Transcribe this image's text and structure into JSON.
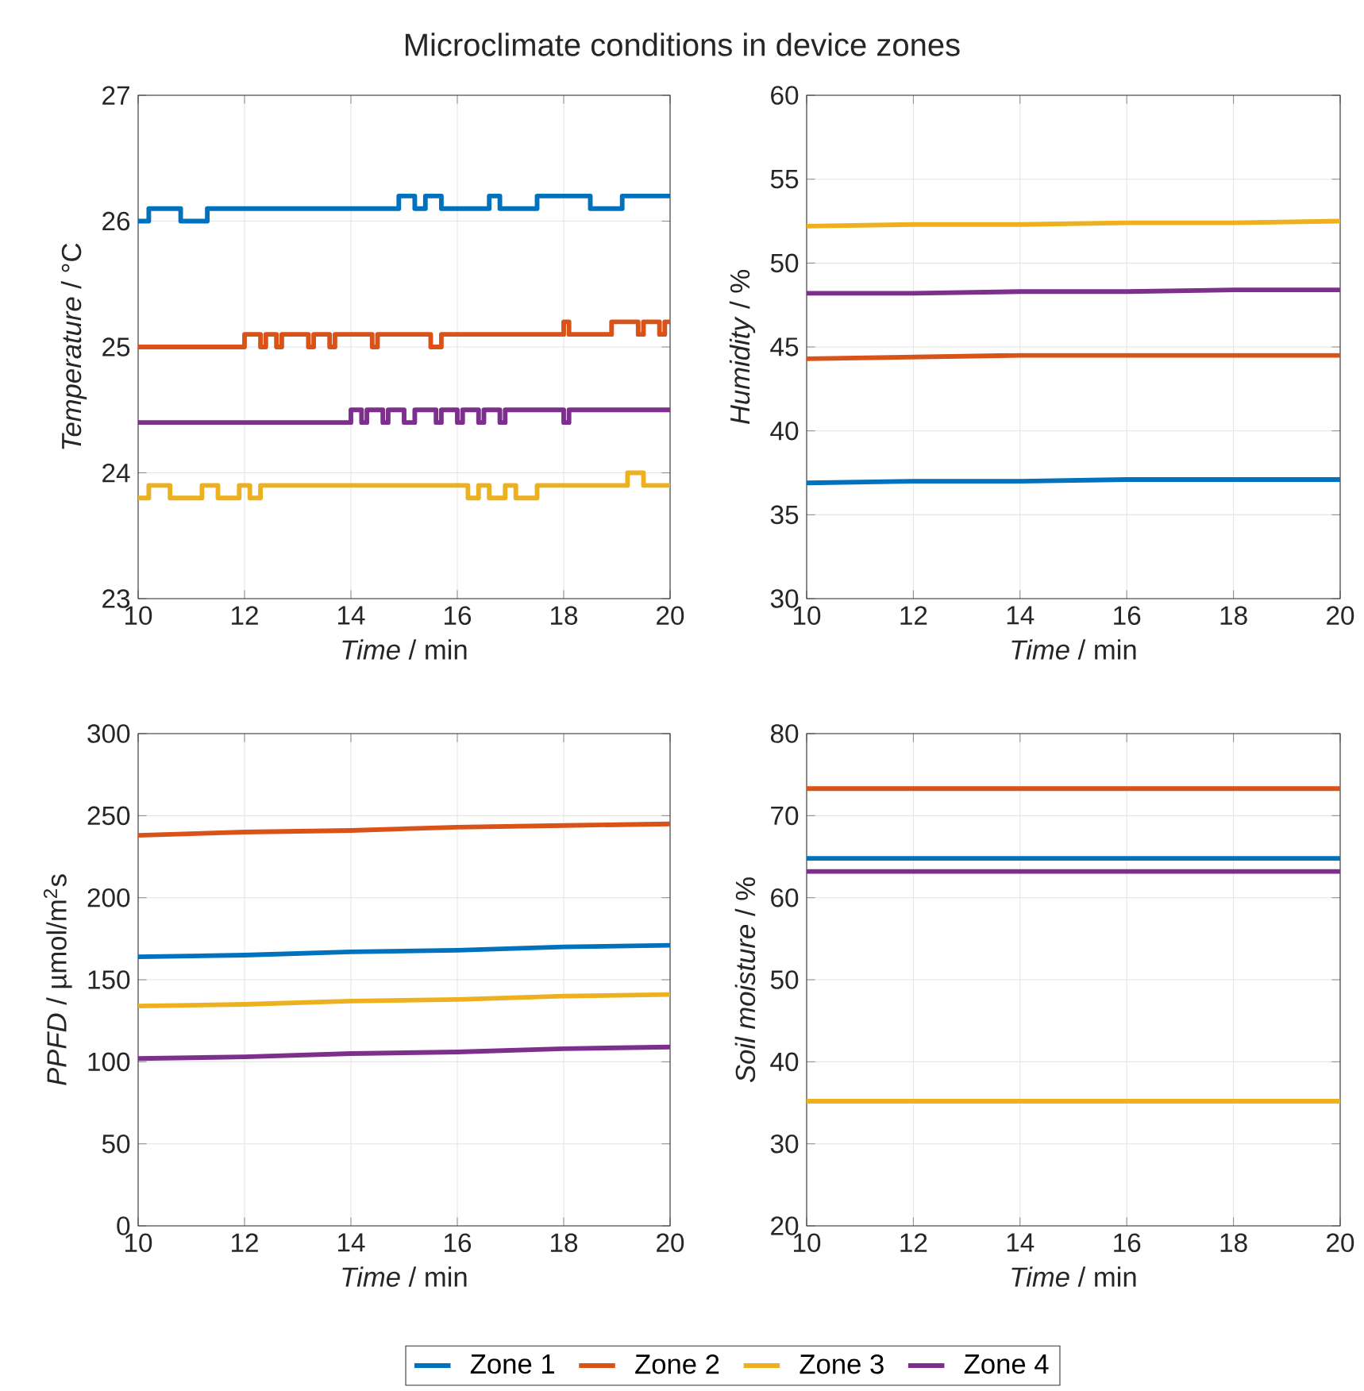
{
  "chart_data": [
    {
      "type": "step",
      "title": "Microclimate conditions in device zones",
      "xlabel": "*Time* / min",
      "ylabel": "*Temperature* / °C",
      "xlim": [
        10,
        20
      ],
      "ylim": [
        23,
        27
      ],
      "xticks": [
        10,
        12,
        14,
        16,
        18,
        20
      ],
      "yticks": [
        23,
        24,
        25,
        26,
        27
      ],
      "grid": true,
      "legend": "bottom",
      "series": [
        {
          "name": "Zone 1",
          "color": "#0072bd",
          "x": [
            10,
            10.2,
            10.8,
            11.3,
            14.9,
            15.2,
            15.4,
            15.7,
            16.6,
            16.8,
            17.5,
            18.5,
            19.1,
            20
          ],
          "values": [
            26.0,
            26.1,
            26.0,
            26.1,
            26.2,
            26.1,
            26.2,
            26.1,
            26.2,
            26.1,
            26.2,
            26.1,
            26.2,
            26.2
          ]
        },
        {
          "name": "Zone 2",
          "color": "#d95319",
          "x": [
            10,
            12.0,
            12.3,
            12.4,
            12.6,
            12.7,
            13.2,
            13.3,
            13.6,
            13.7,
            14.4,
            14.5,
            15.5,
            15.7,
            18.0,
            18.1,
            18.9,
            19.4,
            19.5,
            19.8,
            19.9,
            20
          ],
          "values": [
            25.0,
            25.1,
            25.0,
            25.1,
            25.0,
            25.1,
            25.0,
            25.1,
            25.0,
            25.1,
            25.0,
            25.1,
            25.0,
            25.1,
            25.2,
            25.1,
            25.2,
            25.1,
            25.2,
            25.1,
            25.2,
            25.2
          ]
        },
        {
          "name": "Zone 3",
          "color": "#edb120",
          "x": [
            10,
            10.2,
            10.6,
            11.2,
            11.5,
            11.9,
            12.1,
            12.3,
            12.4,
            16.2,
            16.4,
            16.6,
            16.9,
            17.1,
            17.5,
            17.9,
            19.2,
            19.5,
            20
          ],
          "values": [
            23.8,
            23.9,
            23.8,
            23.9,
            23.8,
            23.9,
            23.8,
            23.9,
            23.9,
            23.8,
            23.9,
            23.8,
            23.9,
            23.8,
            23.9,
            23.9,
            24.0,
            23.9,
            23.9
          ]
        },
        {
          "name": "Zone 4",
          "color": "#7e2f8e",
          "x": [
            10,
            14.0,
            14.2,
            14.3,
            14.6,
            14.7,
            15.0,
            15.2,
            15.6,
            15.7,
            16.0,
            16.1,
            16.4,
            16.5,
            16.8,
            16.9,
            17.2,
            18.0,
            18.1,
            20
          ],
          "values": [
            24.4,
            24.5,
            24.4,
            24.5,
            24.4,
            24.5,
            24.4,
            24.5,
            24.4,
            24.5,
            24.4,
            24.5,
            24.4,
            24.5,
            24.4,
            24.5,
            24.5,
            24.4,
            24.5,
            24.5
          ]
        }
      ]
    },
    {
      "type": "line",
      "xlabel": "*Time* / min",
      "ylabel": "*Humidity* / %",
      "xlim": [
        10,
        20
      ],
      "ylim": [
        30,
        60
      ],
      "xticks": [
        10,
        12,
        14,
        16,
        18,
        20
      ],
      "yticks": [
        30,
        35,
        40,
        45,
        50,
        55,
        60
      ],
      "grid": true,
      "series": [
        {
          "color": "#0072bd",
          "x": [
            10,
            12,
            14,
            16,
            18,
            20
          ],
          "values": [
            36.9,
            37.0,
            37.0,
            37.1,
            37.1,
            37.1
          ]
        },
        {
          "color": "#d95319",
          "x": [
            10,
            12,
            14,
            16,
            18,
            20
          ],
          "values": [
            44.3,
            44.4,
            44.5,
            44.5,
            44.5,
            44.5
          ]
        },
        {
          "color": "#edb120",
          "x": [
            10,
            12,
            14,
            16,
            18,
            20
          ],
          "values": [
            52.2,
            52.3,
            52.3,
            52.4,
            52.4,
            52.5
          ]
        },
        {
          "color": "#7e2f8e",
          "x": [
            10,
            12,
            14,
            16,
            18,
            20
          ],
          "values": [
            48.2,
            48.2,
            48.3,
            48.3,
            48.4,
            48.4
          ]
        }
      ]
    },
    {
      "type": "line",
      "xlabel": "*Time* / min",
      "ylabel": "*PPFD* / µmol/m$^{2}$s",
      "xlim": [
        10,
        20
      ],
      "ylim": [
        0,
        300
      ],
      "xticks": [
        10,
        12,
        14,
        16,
        18,
        20
      ],
      "yticks": [
        0,
        50,
        100,
        150,
        200,
        250,
        300
      ],
      "grid": true,
      "series": [
        {
          "color": "#0072bd",
          "x": [
            10,
            12,
            14,
            16,
            18,
            20
          ],
          "values": [
            164,
            165,
            167,
            168,
            170,
            171
          ]
        },
        {
          "color": "#d95319",
          "x": [
            10,
            12,
            14,
            16,
            18,
            20
          ],
          "values": [
            238,
            240,
            241,
            243,
            244,
            245
          ]
        },
        {
          "color": "#edb120",
          "x": [
            10,
            12,
            14,
            16,
            18,
            20
          ],
          "values": [
            134,
            135,
            137,
            138,
            140,
            141
          ]
        },
        {
          "color": "#7e2f8e",
          "x": [
            10,
            12,
            14,
            16,
            18,
            20
          ],
          "values": [
            102,
            103,
            105,
            106,
            108,
            109
          ]
        }
      ]
    },
    {
      "type": "line",
      "xlabel": "*Time* / min",
      "ylabel": "*Soil moisture* / %",
      "xlim": [
        10,
        20
      ],
      "ylim": [
        20,
        80
      ],
      "xticks": [
        10,
        12,
        14,
        16,
        18,
        20
      ],
      "yticks": [
        20,
        30,
        40,
        50,
        60,
        70,
        80
      ],
      "grid": true,
      "series": [
        {
          "color": "#0072bd",
          "x": [
            10,
            20
          ],
          "values": [
            64.8,
            64.8
          ]
        },
        {
          "color": "#d95319",
          "x": [
            10,
            20
          ],
          "values": [
            73.3,
            73.3
          ]
        },
        {
          "color": "#edb120",
          "x": [
            10,
            20
          ],
          "values": [
            35.2,
            35.2
          ]
        },
        {
          "color": "#7e2f8e",
          "x": [
            10,
            20
          ],
          "values": [
            63.2,
            63.2
          ]
        }
      ]
    }
  ]
}
